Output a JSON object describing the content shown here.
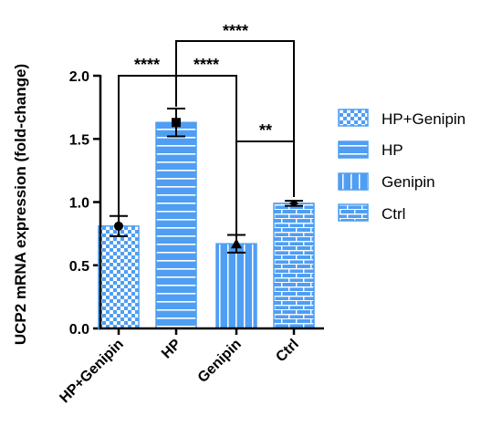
{
  "chart_data": {
    "type": "bar",
    "ylabel": "UCP2 mRNA expression (fold-change)",
    "xlabel": "",
    "ylim": [
      0,
      2.0
    ],
    "yticks": [
      "0.0",
      "0.5",
      "1.0",
      "1.5",
      "2.0"
    ],
    "categories": [
      "HP+Genipin",
      "HP",
      "Genipin",
      "Ctrl"
    ],
    "values": [
      0.81,
      1.63,
      0.67,
      0.99
    ],
    "error": [
      0.08,
      0.11,
      0.07,
      0.02
    ],
    "markers": [
      "circle",
      "square",
      "triangle",
      "diamond"
    ],
    "patterns": [
      "checker",
      "horizontal",
      "vertical",
      "brick"
    ],
    "legend": {
      "position": "right",
      "entries": [
        "HP+Genipin",
        "HP",
        "Genipin",
        "Ctrl"
      ]
    },
    "significance": [
      {
        "label": "****",
        "from": "HP+Genipin",
        "to": "HP"
      },
      {
        "label": "****",
        "from": "HP",
        "to": "Genipin"
      },
      {
        "label": "****",
        "from": "HP",
        "to": "Ctrl"
      },
      {
        "label": "**",
        "from": "Genipin",
        "to": "Ctrl"
      }
    ],
    "colors": {
      "fill": "#4f9ef3",
      "line": "#ffffff",
      "axis": "#000000"
    }
  }
}
